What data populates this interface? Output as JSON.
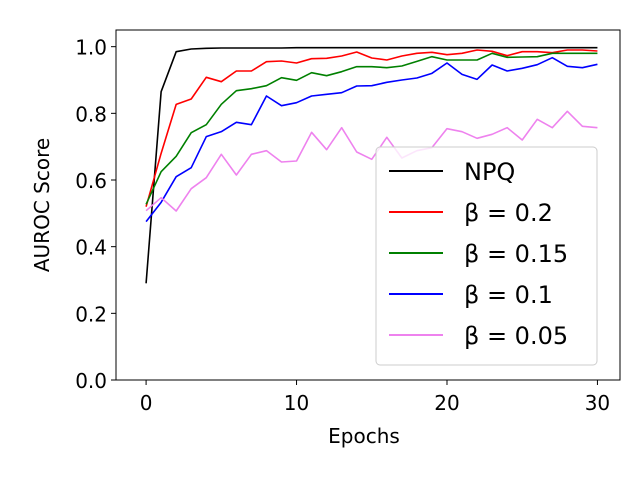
{
  "chart_data": {
    "type": "line",
    "xlabel": "Epochs",
    "ylabel": "AUROC Score",
    "xlim": [
      -2,
      31.5
    ],
    "ylim": [
      0.0,
      1.05
    ],
    "xticks": [
      0,
      10,
      20,
      30
    ],
    "yticks": [
      0.0,
      0.2,
      0.4,
      0.6,
      0.8,
      1.0
    ],
    "xtick_labels": [
      "0",
      "10",
      "20",
      "30"
    ],
    "ytick_labels": [
      "0.0",
      "0.2",
      "0.4",
      "0.6",
      "0.8",
      "1.0"
    ],
    "grid": false,
    "legend_position": "lower-right",
    "x": [
      0,
      1,
      2,
      3,
      4,
      5,
      6,
      7,
      8,
      9,
      10,
      11,
      12,
      13,
      14,
      15,
      16,
      17,
      18,
      19,
      20,
      21,
      22,
      23,
      24,
      25,
      26,
      27,
      28,
      29,
      30
    ],
    "series": [
      {
        "name": "NPQ",
        "color": "#000000",
        "values": [
          0.29,
          0.865,
          0.985,
          0.993,
          0.995,
          0.996,
          0.996,
          0.996,
          0.996,
          0.996,
          0.997,
          0.997,
          0.997,
          0.997,
          0.997,
          0.997,
          0.997,
          0.997,
          0.997,
          0.997,
          0.997,
          0.997,
          0.997,
          0.997,
          0.997,
          0.997,
          0.997,
          0.997,
          0.997,
          0.997,
          0.997
        ]
      },
      {
        "name": "β = 0.2",
        "color": "#ff0000",
        "values": [
          0.52,
          0.68,
          0.827,
          0.843,
          0.908,
          0.895,
          0.927,
          0.927,
          0.955,
          0.957,
          0.951,
          0.964,
          0.965,
          0.972,
          0.984,
          0.966,
          0.96,
          0.972,
          0.98,
          0.983,
          0.976,
          0.98,
          0.99,
          0.986,
          0.973,
          0.985,
          0.985,
          0.982,
          0.99,
          0.99,
          0.987
        ]
      },
      {
        "name": "β = 0.15",
        "color": "#008000",
        "values": [
          0.527,
          0.625,
          0.671,
          0.742,
          0.766,
          0.827,
          0.868,
          0.874,
          0.883,
          0.907,
          0.899,
          0.922,
          0.913,
          0.925,
          0.94,
          0.94,
          0.937,
          0.942,
          0.956,
          0.97,
          0.96,
          0.96,
          0.96,
          0.98,
          0.968,
          0.969,
          0.97,
          0.98,
          0.98,
          0.98,
          0.98
        ]
      },
      {
        "name": "β = 0.1",
        "color": "#0000ff",
        "values": [
          0.475,
          0.533,
          0.61,
          0.637,
          0.73,
          0.745,
          0.773,
          0.766,
          0.852,
          0.823,
          0.832,
          0.852,
          0.857,
          0.862,
          0.882,
          0.883,
          0.893,
          0.9,
          0.906,
          0.92,
          0.951,
          0.917,
          0.902,
          0.945,
          0.927,
          0.935,
          0.946,
          0.967,
          0.941,
          0.937,
          0.947
        ]
      },
      {
        "name": "β = 0.05",
        "color": "#ee82ee",
        "values": [
          0.508,
          0.547,
          0.507,
          0.574,
          0.607,
          0.677,
          0.615,
          0.677,
          0.688,
          0.654,
          0.657,
          0.743,
          0.691,
          0.757,
          0.684,
          0.662,
          0.728,
          0.666,
          0.688,
          0.697,
          0.754,
          0.745,
          0.725,
          0.737,
          0.757,
          0.72,
          0.782,
          0.757,
          0.806,
          0.761,
          0.757
        ]
      }
    ]
  }
}
